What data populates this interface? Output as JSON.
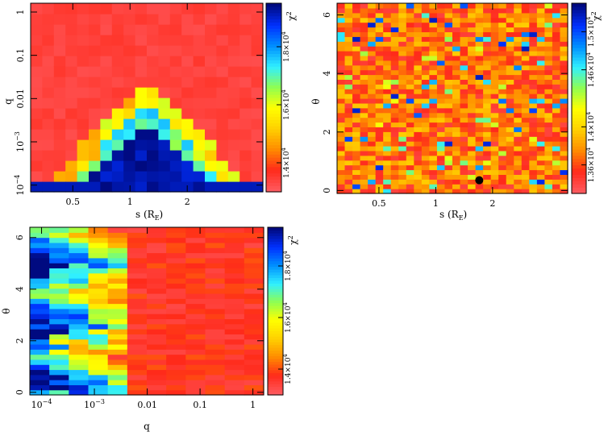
{
  "colormap": {
    "name": "jet-reversed",
    "low_color": "#ff4e55",
    "high_color": "#001478",
    "stops": [
      "#ff5a5f",
      "#ff2a1a",
      "#ff8c00",
      "#ffd000",
      "#ffff00",
      "#90ff50",
      "#30f0ff",
      "#0090ff",
      "#0030ff",
      "#000a80"
    ]
  },
  "chart_data": [
    {
      "id": "s-q",
      "type": "heatmap",
      "xlabel_main": "s (R",
      "xlabel_sub": "E",
      "xlabel_close": ")",
      "ylabel": "q",
      "xscale": "log",
      "yscale": "log",
      "xlim": [
        0.3,
        5.0
      ],
      "ylim": [
        7e-05,
        1.6
      ],
      "x_ticks": [
        {
          "value": 0.5,
          "label": "0.5"
        },
        {
          "value": 1,
          "label": "1"
        },
        {
          "value": 2,
          "label": "2"
        }
      ],
      "y_ticks": [
        {
          "value": 0.0001,
          "label": "10",
          "exp": "−4"
        },
        {
          "value": 0.001,
          "label": "10",
          "exp": "−3"
        },
        {
          "value": 0.01,
          "label": "0.01"
        },
        {
          "value": 0.1,
          "label": "0.1"
        },
        {
          "value": 1,
          "label": "1"
        }
      ],
      "colorbar": {
        "label": "χ",
        "label_exp": "2",
        "ticks": [
          {
            "value": 14000,
            "label": "1.4×10",
            "exp": "4"
          },
          {
            "value": 16000,
            "label": "1.6×10",
            "exp": "4"
          },
          {
            "value": 18000,
            "label": "1.8×10",
            "exp": "4"
          }
        ],
        "range": [
          13000,
          19500
        ]
      },
      "grid": {
        "nx": 20,
        "ny": 18
      }
    },
    {
      "id": "s-theta",
      "type": "heatmap",
      "xlabel_main": "s (R",
      "xlabel_sub": "E",
      "xlabel_close": ")",
      "ylabel": "θ",
      "xscale": "log",
      "yscale": "linear",
      "xlim": [
        0.3,
        5.0
      ],
      "ylim": [
        -0.1,
        6.4
      ],
      "x_ticks": [
        {
          "value": 0.5,
          "label": "0.5"
        },
        {
          "value": 1,
          "label": "1"
        },
        {
          "value": 2,
          "label": "2"
        }
      ],
      "y_ticks": [
        {
          "value": 0,
          "label": "0"
        },
        {
          "value": 2,
          "label": "2"
        },
        {
          "value": 4,
          "label": "4"
        },
        {
          "value": 6,
          "label": "6"
        }
      ],
      "colorbar": {
        "label": "χ",
        "label_exp": "2",
        "ticks": [
          {
            "value": 13600,
            "label": "1.36×10",
            "exp": "4"
          },
          {
            "value": 14000,
            "label": "1.4×10",
            "exp": "4"
          },
          {
            "value": 14600,
            "label": "1.46×10",
            "exp": "4"
          },
          {
            "value": 15000,
            "label": "1.5×10",
            "exp": "4"
          }
        ],
        "range": [
          13300,
          15300
        ]
      },
      "best_fit": {
        "s": 1.7,
        "theta": 0.35
      },
      "grid": {
        "nx": 30,
        "ny": 40
      }
    },
    {
      "id": "q-theta",
      "type": "heatmap",
      "xlabel": "q",
      "ylabel": "θ",
      "xscale": "log",
      "yscale": "linear",
      "xlim": [
        6e-05,
        1.6
      ],
      "ylim": [
        -0.1,
        6.4
      ],
      "x_ticks": [
        {
          "value": 0.0001,
          "label": "10",
          "exp": "−4"
        },
        {
          "value": 0.001,
          "label": "10",
          "exp": "−3"
        },
        {
          "value": 0.01,
          "label": "0.01"
        },
        {
          "value": 0.1,
          "label": "0.1"
        },
        {
          "value": 1,
          "label": "1"
        }
      ],
      "y_ticks": [
        {
          "value": 0,
          "label": "0"
        },
        {
          "value": 2,
          "label": "2"
        },
        {
          "value": 4,
          "label": "4"
        },
        {
          "value": 6,
          "label": "6"
        }
      ],
      "colorbar": {
        "label": "χ",
        "label_exp": "2",
        "ticks": [
          {
            "value": 14000,
            "label": "1.4×10",
            "exp": "4"
          },
          {
            "value": 16000,
            "label": "1.6×10",
            "exp": "4"
          },
          {
            "value": 18000,
            "label": "1.8×10",
            "exp": "4"
          }
        ],
        "range": [
          13000,
          19500
        ]
      },
      "grid": {
        "nx": 12,
        "ny": 33
      }
    }
  ]
}
